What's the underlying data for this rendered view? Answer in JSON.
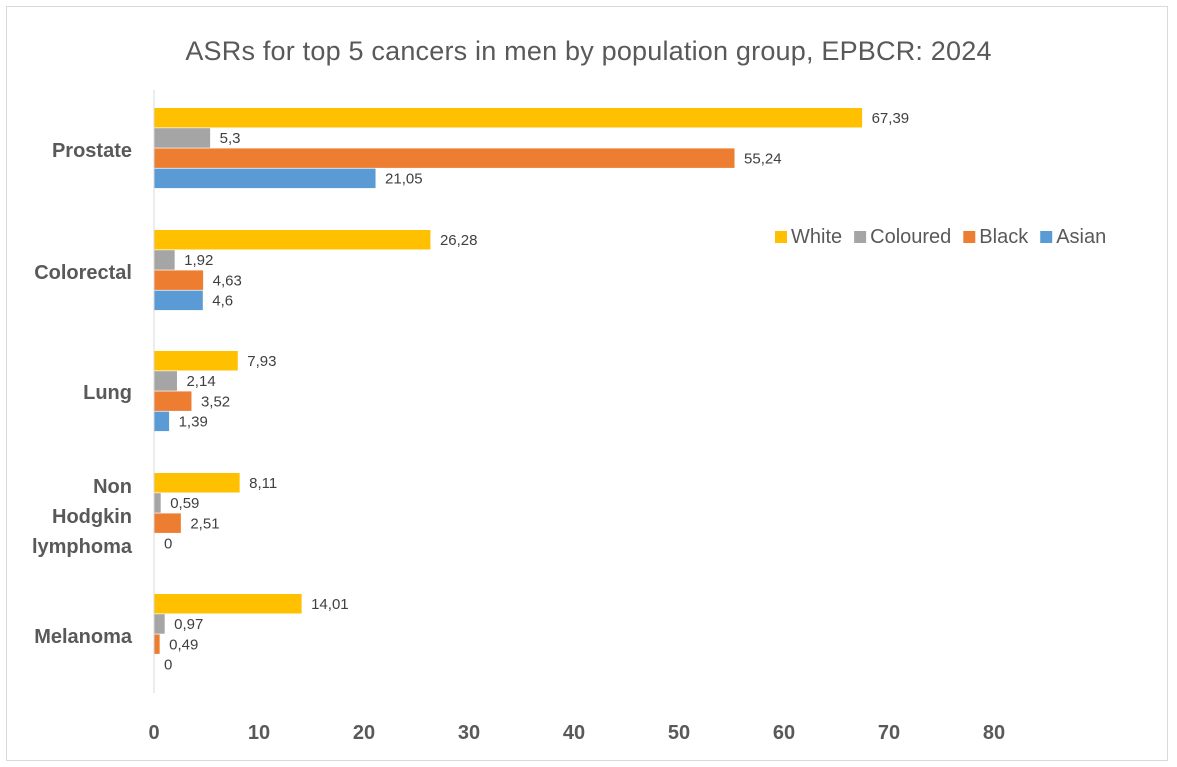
{
  "chart_data": {
    "type": "bar",
    "orientation": "horizontal",
    "title": "ASRs for top 5 cancers in men by population group, EPBCR: 2024",
    "categories": [
      [
        "Prostate"
      ],
      [
        "Colorectal"
      ],
      [
        "Lung"
      ],
      [
        "Non",
        "Hodgkin",
        "lymphoma"
      ],
      [
        "Melanoma"
      ]
    ],
    "series": [
      {
        "name": "White",
        "color": "#FFC000",
        "values": [
          67.39,
          26.28,
          7.93,
          8.11,
          14.01
        ],
        "labels": [
          "67,39",
          "26,28",
          "7,93",
          "8,11",
          "14,01"
        ]
      },
      {
        "name": "Coloured",
        "color": "#A5A5A5",
        "values": [
          5.3,
          1.92,
          2.14,
          0.59,
          0.97
        ],
        "labels": [
          "5,3",
          "1,92",
          "2,14",
          "0,59",
          "0,97"
        ]
      },
      {
        "name": "Black",
        "color": "#ED7D31",
        "values": [
          55.24,
          4.63,
          3.52,
          2.51,
          0.49
        ],
        "labels": [
          "55,24",
          "4,63",
          "3,52",
          "2,51",
          "0,49"
        ]
      },
      {
        "name": "Asian",
        "color": "#5B9BD5",
        "values": [
          21.05,
          4.6,
          1.39,
          0,
          0
        ],
        "labels": [
          "21,05",
          "4,6",
          "1,39",
          "0",
          "0"
        ]
      }
    ],
    "xlim": [
      0,
      80
    ],
    "xticks": [
      "0",
      "10",
      "20",
      "30",
      "40",
      "50",
      "60",
      "70",
      "80"
    ],
    "grid": false,
    "legend_position": "right"
  }
}
